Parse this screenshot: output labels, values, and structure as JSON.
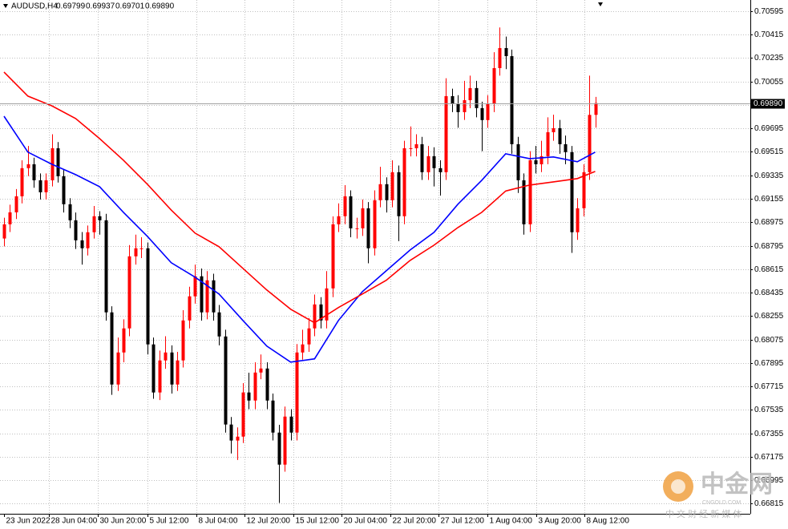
{
  "chart_data": {
    "type": "candlestick",
    "header": {
      "symbol": "AUDUSD,H4",
      "values": [
        "0.69799",
        "0.69937",
        "0.69701",
        "0.69890"
      ]
    },
    "up_color": "#ff0000",
    "down_color": "#000000",
    "candles": [
      [
        0.6885,
        0.6901,
        0.6879,
        0.68959
      ],
      [
        0.68959,
        0.6911,
        0.689,
        0.69051
      ],
      [
        0.69051,
        0.6923,
        0.69,
        0.69174
      ],
      [
        0.69174,
        0.6945,
        0.6912,
        0.6939
      ],
      [
        0.6939,
        0.6956,
        0.6933,
        0.6942
      ],
      [
        0.6942,
        0.6947,
        0.6924,
        0.69297
      ],
      [
        0.69297,
        0.6935,
        0.6915,
        0.69205
      ],
      [
        0.69205,
        0.6935,
        0.6915,
        0.69297
      ],
      [
        0.69297,
        0.6965,
        0.6925,
        0.69543
      ],
      [
        0.69543,
        0.6959,
        0.6928,
        0.69328
      ],
      [
        0.69328,
        0.6938,
        0.6905,
        0.69113
      ],
      [
        0.69113,
        0.6916,
        0.6893,
        0.6899
      ],
      [
        0.6899,
        0.6905,
        0.6877,
        0.68836
      ],
      [
        0.68836,
        0.689,
        0.6865,
        0.68775
      ],
      [
        0.68775,
        0.6895,
        0.6872,
        0.68898
      ],
      [
        0.68898,
        0.691,
        0.6885,
        0.69021
      ],
      [
        0.69021,
        0.6906,
        0.6888,
        0.6899
      ],
      [
        0.6899,
        0.6904,
        0.6822,
        0.68283
      ],
      [
        0.68283,
        0.6833,
        0.6765,
        0.67729
      ],
      [
        0.67729,
        0.6809,
        0.6768,
        0.67975
      ],
      [
        0.67975,
        0.6823,
        0.679,
        0.6816
      ],
      [
        0.6816,
        0.688,
        0.681,
        0.68713
      ],
      [
        0.68713,
        0.6888,
        0.6865,
        0.68775
      ],
      [
        0.68775,
        0.6886,
        0.687,
        0.68775
      ],
      [
        0.68775,
        0.6882,
        0.6796,
        0.68037
      ],
      [
        0.68037,
        0.6809,
        0.6762,
        0.67668
      ],
      [
        0.67668,
        0.6799,
        0.6761,
        0.67914
      ],
      [
        0.67914,
        0.681,
        0.6785,
        0.67975
      ],
      [
        0.67975,
        0.6803,
        0.6766,
        0.67729
      ],
      [
        0.67729,
        0.6798,
        0.6768,
        0.67914
      ],
      [
        0.67914,
        0.683,
        0.6786,
        0.68221
      ],
      [
        0.68221,
        0.6848,
        0.6816,
        0.68406
      ],
      [
        0.68406,
        0.6865,
        0.6835,
        0.6856
      ],
      [
        0.6856,
        0.6862,
        0.6822,
        0.68283
      ],
      [
        0.68283,
        0.686,
        0.6823,
        0.68529
      ],
      [
        0.68529,
        0.6858,
        0.6822,
        0.68283
      ],
      [
        0.68283,
        0.6834,
        0.6803,
        0.68098
      ],
      [
        0.68098,
        0.6815,
        0.6736,
        0.67422
      ],
      [
        0.67422,
        0.6748,
        0.672,
        0.67299
      ],
      [
        0.67299,
        0.674,
        0.6715,
        0.67329
      ],
      [
        0.67329,
        0.6774,
        0.6728,
        0.67668
      ],
      [
        0.67668,
        0.6782,
        0.6754,
        0.67606
      ],
      [
        0.67606,
        0.679,
        0.6754,
        0.67821
      ],
      [
        0.67821,
        0.6796,
        0.6777,
        0.67852
      ],
      [
        0.67852,
        0.679,
        0.6754,
        0.67606
      ],
      [
        0.67606,
        0.6766,
        0.673,
        0.6736
      ],
      [
        0.6736,
        0.6742,
        0.6682,
        0.67114
      ],
      [
        0.67114,
        0.6756,
        0.6706,
        0.67483
      ],
      [
        0.67483,
        0.6754,
        0.673,
        0.6736
      ],
      [
        0.6736,
        0.6804,
        0.673,
        0.67975
      ],
      [
        0.67975,
        0.6815,
        0.6792,
        0.68037
      ],
      [
        0.68037,
        0.6824,
        0.6798,
        0.6816
      ],
      [
        0.6816,
        0.6842,
        0.681,
        0.68344
      ],
      [
        0.68344,
        0.684,
        0.6816,
        0.68221
      ],
      [
        0.68221,
        0.686,
        0.6816,
        0.68467
      ],
      [
        0.68467,
        0.6902,
        0.684,
        0.68959
      ],
      [
        0.68959,
        0.6912,
        0.689,
        0.69021
      ],
      [
        0.69021,
        0.6926,
        0.6896,
        0.69174
      ],
      [
        0.69174,
        0.6922,
        0.6886,
        0.68928
      ],
      [
        0.68928,
        0.6901,
        0.6885,
        0.68928
      ],
      [
        0.68928,
        0.6915,
        0.6887,
        0.69082
      ],
      [
        0.69082,
        0.6913,
        0.6866,
        0.68775
      ],
      [
        0.68775,
        0.6922,
        0.6872,
        0.69144
      ],
      [
        0.69144,
        0.694,
        0.6909,
        0.69267
      ],
      [
        0.69267,
        0.6932,
        0.6905,
        0.69144
      ],
      [
        0.69144,
        0.6945,
        0.6909,
        0.69359
      ],
      [
        0.69359,
        0.6941,
        0.6883,
        0.69021
      ],
      [
        0.69021,
        0.696,
        0.6896,
        0.69543
      ],
      [
        0.69543,
        0.6971,
        0.6948,
        0.69543
      ],
      [
        0.69543,
        0.6965,
        0.6948,
        0.69574
      ],
      [
        0.69574,
        0.6963,
        0.693,
        0.69359
      ],
      [
        0.69359,
        0.6956,
        0.693,
        0.69482
      ],
      [
        0.69482,
        0.6955,
        0.6925,
        0.6939
      ],
      [
        0.6939,
        0.6945,
        0.6918,
        0.69359
      ],
      [
        0.69359,
        0.7008,
        0.693,
        0.69943
      ],
      [
        0.69943,
        0.7,
        0.6982,
        0.69882
      ],
      [
        0.69882,
        0.6995,
        0.697,
        0.6982
      ],
      [
        0.6982,
        0.7006,
        0.6976,
        0.69912
      ],
      [
        0.69912,
        0.701,
        0.6985,
        0.70005
      ],
      [
        0.70005,
        0.7006,
        0.6978,
        0.69851
      ],
      [
        0.69851,
        0.699,
        0.6952,
        0.69759
      ],
      [
        0.69759,
        0.6995,
        0.697,
        0.69882
      ],
      [
        0.69882,
        0.7028,
        0.6982,
        0.70158
      ],
      [
        0.70158,
        0.7047,
        0.701,
        0.70312
      ],
      [
        0.70312,
        0.704,
        0.7015,
        0.7025
      ],
      [
        0.7025,
        0.703,
        0.695,
        0.69574
      ],
      [
        0.69574,
        0.6963,
        0.692,
        0.69297
      ],
      [
        0.69297,
        0.6935,
        0.6888,
        0.68959
      ],
      [
        0.68959,
        0.6952,
        0.689,
        0.69451
      ],
      [
        0.69451,
        0.6956,
        0.6935,
        0.6942
      ],
      [
        0.6942,
        0.696,
        0.6936,
        0.69482
      ],
      [
        0.69482,
        0.6978,
        0.6942,
        0.69666
      ],
      [
        0.69666,
        0.698,
        0.696,
        0.69697
      ],
      [
        0.69697,
        0.6976,
        0.695,
        0.69574
      ],
      [
        0.69574,
        0.6964,
        0.6942,
        0.69513
      ],
      [
        0.69513,
        0.6956,
        0.6874,
        0.68898
      ],
      [
        0.68898,
        0.6916,
        0.6884,
        0.69082
      ],
      [
        0.69082,
        0.6942,
        0.6902,
        0.69359
      ],
      [
        0.69359,
        0.701,
        0.693,
        0.69799
      ],
      [
        0.69799,
        0.69937,
        0.69701,
        0.6989
      ]
    ],
    "series": [
      {
        "color": "#0000ff",
        "x": [
          0,
          4,
          8,
          12,
          16,
          20,
          24,
          28,
          32,
          36,
          40,
          44,
          48,
          52,
          56,
          60,
          64,
          68,
          72,
          76,
          80,
          84,
          88,
          92,
          96,
          99
        ],
        "values": [
          0.69789,
          0.69513,
          0.6942,
          0.6934,
          0.69248,
          0.69051,
          0.68867,
          0.68664,
          0.68553,
          0.68424,
          0.68221,
          0.68024,
          0.67901,
          0.67926,
          0.68221,
          0.68442,
          0.68602,
          0.68762,
          0.68897,
          0.69113,
          0.69297,
          0.695,
          0.69463,
          0.69476,
          0.69439,
          0.69513
        ]
      },
      {
        "color": "#ff0000",
        "x": [
          0,
          4,
          8,
          12,
          16,
          20,
          24,
          28,
          32,
          36,
          40,
          44,
          48,
          52,
          56,
          60,
          64,
          68,
          72,
          76,
          80,
          84,
          88,
          92,
          96,
          99
        ],
        "values": [
          0.70128,
          0.69943,
          0.69869,
          0.69771,
          0.69617,
          0.69451,
          0.69267,
          0.69068,
          0.68891,
          0.68787,
          0.68621,
          0.68455,
          0.68307,
          0.68203,
          0.6832,
          0.68424,
          0.68529,
          0.68682,
          0.68799,
          0.68934,
          0.69051,
          0.69215,
          0.6926,
          0.69285,
          0.6931,
          0.69365
        ]
      }
    ],
    "xlim": [
      -0.67,
      124.97
    ],
    "xticks": [
      {
        "value": 0,
        "label": "23 Jun 2022"
      },
      {
        "value": 7.5,
        "label": "28 Jun 04:00"
      },
      {
        "value": 15.7,
        "label": "30 Jun 20:00"
      },
      {
        "value": 24,
        "label": "5 Jul 12:00"
      },
      {
        "value": 32.2,
        "label": "8 Jul 04:00"
      },
      {
        "value": 40.3,
        "label": "12 Jul 20:00"
      },
      {
        "value": 48.5,
        "label": "15 Jul 12:00"
      },
      {
        "value": 56.5,
        "label": "20 Jul 04:00"
      },
      {
        "value": 64.7,
        "label": "22 Jul 20:00"
      },
      {
        "value": 72.8,
        "label": "27 Jul 12:00"
      },
      {
        "value": 81,
        "label": "1 Aug 04:00"
      },
      {
        "value": 89.1,
        "label": "3 Aug 20:00"
      },
      {
        "value": 97.2,
        "label": "8 Aug 12:00"
      }
    ],
    "ylim": [
      0.66743,
      0.70681
    ],
    "yticks": [
      0.70595,
      0.70415,
      0.70235,
      0.70055,
      0.69875,
      0.69695,
      0.69515,
      0.69335,
      0.69155,
      0.68975,
      0.68795,
      0.68615,
      0.68435,
      0.68255,
      0.68075,
      0.67895,
      0.67715,
      0.67535,
      0.67355,
      0.67175,
      0.66995,
      0.66815
    ],
    "current_price": {
      "value": 0.6989,
      "label": "0.69890"
    },
    "grid": true
  },
  "watermark": {
    "name": "中金网",
    "site": "CNGOLD.COM",
    "slogan": "中 文 财 经 新 媒 体"
  }
}
